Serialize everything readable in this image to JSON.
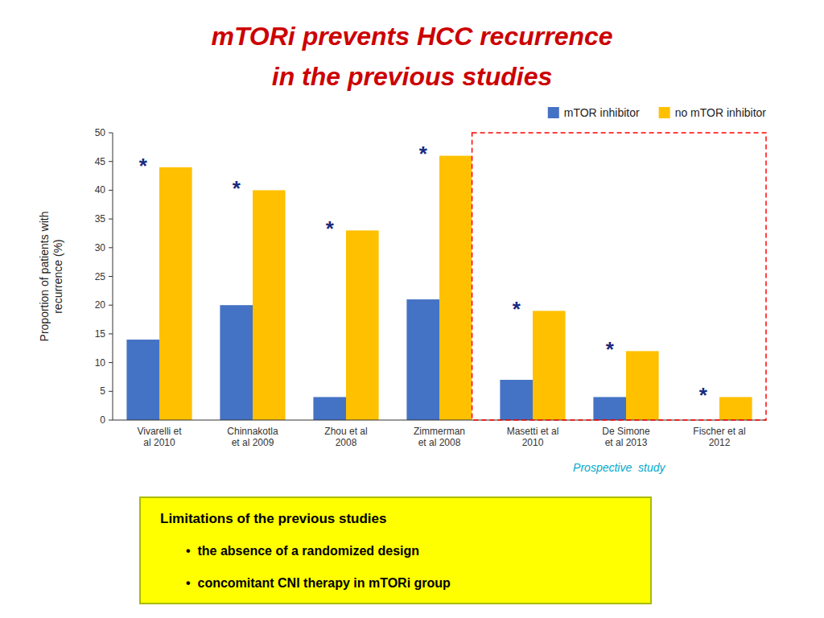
{
  "chart_data": {
    "type": "bar",
    "title": [
      "mTORi prevents HCC recurrence",
      "in the previous studies"
    ],
    "title_color": "#cc0000",
    "categories": [
      "Vivarelli et\nal 2010",
      "Chinnakotla\net al 2009",
      "Zhou et al\n2008",
      "Zimmerman\net al 2008",
      "Masetti et al\n2010",
      "De Simone\net al 2013",
      "Fischer et al\n2012"
    ],
    "series": [
      {
        "name": "mTOR inhibitor",
        "color": "#4472c4",
        "values": [
          14,
          20,
          4,
          21,
          7,
          4,
          0
        ]
      },
      {
        "name": "no mTOR inhibitor",
        "color": "#ffc000",
        "values": [
          44,
          40,
          33,
          46,
          19,
          12,
          4
        ]
      }
    ],
    "y_label": "Proportion of patients with\nrecurrence (%)",
    "ylim": [
      0,
      50
    ],
    "yticks": [
      0,
      5,
      10,
      15,
      20,
      25,
      30,
      35,
      40,
      45,
      50
    ],
    "grid": false,
    "legend": "upper right",
    "annotations": [
      {
        "type": "star",
        "text": "*",
        "color": "#1a2a80"
      },
      {
        "type": "region",
        "text": "Prospective  study",
        "color": "#00aacc",
        "line_color": "red",
        "from": "Masetti et al\n2010",
        "to": "Fischer et al\n2012"
      },
      {
        "type": "box",
        "text": "Limitations of the previous studies",
        "bullets": [
          "•  the absence of a randomized design",
          "•  concomitant CNI therapy in mTORi group"
        ],
        "color": "#ffff00",
        "line_color": "#aabb00"
      }
    ]
  }
}
